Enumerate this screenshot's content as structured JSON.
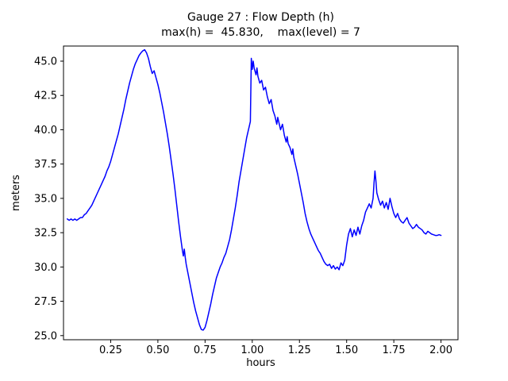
{
  "figure": {
    "title": "Gauge 27 : Flow Depth (h)",
    "subtitle": "max(h) =  45.830,    max(level) = 7"
  },
  "chart_data": {
    "type": "line",
    "title": "Gauge 27 : Flow Depth (h)",
    "subtitle": "max(h) =  45.830,    max(level) = 7",
    "xlabel": "hours",
    "ylabel": "meters",
    "max_h": 45.83,
    "max_level": 7,
    "xlim": [
      0.0,
      2.09
    ],
    "ylim": [
      24.7,
      46.1
    ],
    "x_ticks": [
      0.25,
      0.5,
      0.75,
      1.0,
      1.25,
      1.5,
      1.75,
      2.0
    ],
    "x_tick_labels": [
      "0.25",
      "0.50",
      "0.75",
      "1.00",
      "1.25",
      "1.50",
      "1.75",
      "2.00"
    ],
    "y_ticks": [
      25.0,
      27.5,
      30.0,
      32.5,
      35.0,
      37.5,
      40.0,
      42.5,
      45.0
    ],
    "y_tick_labels": [
      "25.0",
      "27.5",
      "30.0",
      "32.5",
      "35.0",
      "37.5",
      "40.0",
      "42.5",
      "45.0"
    ],
    "line_color": "#0000ff",
    "axis_color": "#000000",
    "background_color": "#ffffff",
    "grid": false,
    "legend": false,
    "series": [
      {
        "name": "h",
        "points": [
          [
            0.02,
            33.5
          ],
          [
            0.03,
            33.4
          ],
          [
            0.04,
            33.5
          ],
          [
            0.05,
            33.4
          ],
          [
            0.06,
            33.5
          ],
          [
            0.07,
            33.4
          ],
          [
            0.08,
            33.5
          ],
          [
            0.09,
            33.6
          ],
          [
            0.1,
            33.6
          ],
          [
            0.11,
            33.8
          ],
          [
            0.12,
            33.9
          ],
          [
            0.13,
            34.1
          ],
          [
            0.14,
            34.3
          ],
          [
            0.15,
            34.5
          ],
          [
            0.16,
            34.8
          ],
          [
            0.17,
            35.1
          ],
          [
            0.18,
            35.4
          ],
          [
            0.19,
            35.7
          ],
          [
            0.2,
            36.0
          ],
          [
            0.21,
            36.3
          ],
          [
            0.22,
            36.6
          ],
          [
            0.23,
            37.0
          ],
          [
            0.24,
            37.3
          ],
          [
            0.25,
            37.7
          ],
          [
            0.26,
            38.2
          ],
          [
            0.27,
            38.7
          ],
          [
            0.28,
            39.2
          ],
          [
            0.29,
            39.7
          ],
          [
            0.3,
            40.3
          ],
          [
            0.31,
            40.9
          ],
          [
            0.32,
            41.5
          ],
          [
            0.33,
            42.2
          ],
          [
            0.34,
            42.8
          ],
          [
            0.35,
            43.4
          ],
          [
            0.36,
            43.9
          ],
          [
            0.37,
            44.4
          ],
          [
            0.38,
            44.8
          ],
          [
            0.39,
            45.1
          ],
          [
            0.4,
            45.4
          ],
          [
            0.41,
            45.6
          ],
          [
            0.42,
            45.75
          ],
          [
            0.43,
            45.83
          ],
          [
            0.44,
            45.6
          ],
          [
            0.45,
            45.2
          ],
          [
            0.46,
            44.6
          ],
          [
            0.47,
            44.1
          ],
          [
            0.48,
            44.3
          ],
          [
            0.49,
            43.8
          ],
          [
            0.5,
            43.3
          ],
          [
            0.51,
            42.7
          ],
          [
            0.52,
            42.0
          ],
          [
            0.53,
            41.3
          ],
          [
            0.54,
            40.5
          ],
          [
            0.55,
            39.7
          ],
          [
            0.56,
            38.8
          ],
          [
            0.57,
            37.8
          ],
          [
            0.58,
            36.8
          ],
          [
            0.59,
            35.7
          ],
          [
            0.6,
            34.5
          ],
          [
            0.61,
            33.3
          ],
          [
            0.62,
            32.2
          ],
          [
            0.63,
            31.2
          ],
          [
            0.635,
            30.8
          ],
          [
            0.64,
            31.3
          ],
          [
            0.645,
            30.7
          ],
          [
            0.65,
            30.2
          ],
          [
            0.66,
            29.5
          ],
          [
            0.67,
            28.8
          ],
          [
            0.68,
            28.1
          ],
          [
            0.69,
            27.4
          ],
          [
            0.7,
            26.8
          ],
          [
            0.71,
            26.3
          ],
          [
            0.72,
            25.8
          ],
          [
            0.73,
            25.45
          ],
          [
            0.74,
            25.4
          ],
          [
            0.75,
            25.6
          ],
          [
            0.76,
            26.1
          ],
          [
            0.77,
            26.7
          ],
          [
            0.78,
            27.3
          ],
          [
            0.79,
            28.0
          ],
          [
            0.8,
            28.6
          ],
          [
            0.81,
            29.2
          ],
          [
            0.82,
            29.6
          ],
          [
            0.83,
            30.0
          ],
          [
            0.84,
            30.3
          ],
          [
            0.85,
            30.7
          ],
          [
            0.86,
            31.0
          ],
          [
            0.87,
            31.5
          ],
          [
            0.88,
            32.0
          ],
          [
            0.89,
            32.7
          ],
          [
            0.9,
            33.5
          ],
          [
            0.91,
            34.3
          ],
          [
            0.92,
            35.2
          ],
          [
            0.93,
            36.2
          ],
          [
            0.94,
            37.0
          ],
          [
            0.95,
            37.8
          ],
          [
            0.96,
            38.6
          ],
          [
            0.97,
            39.4
          ],
          [
            0.98,
            40.0
          ],
          [
            0.985,
            40.3
          ],
          [
            0.99,
            40.6
          ],
          [
            0.995,
            45.2
          ],
          [
            1.0,
            44.4
          ],
          [
            1.005,
            45.0
          ],
          [
            1.01,
            44.5
          ],
          [
            1.02,
            44.0
          ],
          [
            1.025,
            44.5
          ],
          [
            1.03,
            43.9
          ],
          [
            1.04,
            43.4
          ],
          [
            1.05,
            43.6
          ],
          [
            1.06,
            42.9
          ],
          [
            1.07,
            43.1
          ],
          [
            1.08,
            42.4
          ],
          [
            1.09,
            41.9
          ],
          [
            1.1,
            42.2
          ],
          [
            1.11,
            41.4
          ],
          [
            1.12,
            41.0
          ],
          [
            1.13,
            40.4
          ],
          [
            1.135,
            40.9
          ],
          [
            1.14,
            40.6
          ],
          [
            1.15,
            40.0
          ],
          [
            1.16,
            40.4
          ],
          [
            1.17,
            39.6
          ],
          [
            1.18,
            39.1
          ],
          [
            1.185,
            39.5
          ],
          [
            1.19,
            39.0
          ],
          [
            1.2,
            38.7
          ],
          [
            1.21,
            38.2
          ],
          [
            1.215,
            38.6
          ],
          [
            1.22,
            38.0
          ],
          [
            1.23,
            37.4
          ],
          [
            1.24,
            36.8
          ],
          [
            1.25,
            36.1
          ],
          [
            1.26,
            35.4
          ],
          [
            1.27,
            34.7
          ],
          [
            1.28,
            33.9
          ],
          [
            1.29,
            33.3
          ],
          [
            1.3,
            32.8
          ],
          [
            1.31,
            32.4
          ],
          [
            1.32,
            32.1
          ],
          [
            1.33,
            31.8
          ],
          [
            1.34,
            31.5
          ],
          [
            1.35,
            31.2
          ],
          [
            1.36,
            31.0
          ],
          [
            1.37,
            30.7
          ],
          [
            1.38,
            30.4
          ],
          [
            1.39,
            30.2
          ],
          [
            1.4,
            30.1
          ],
          [
            1.41,
            30.2
          ],
          [
            1.42,
            29.9
          ],
          [
            1.43,
            30.1
          ],
          [
            1.44,
            29.85
          ],
          [
            1.45,
            30.0
          ],
          [
            1.46,
            29.8
          ],
          [
            1.47,
            30.3
          ],
          [
            1.48,
            30.1
          ],
          [
            1.49,
            30.5
          ],
          [
            1.5,
            31.6
          ],
          [
            1.505,
            32.0
          ],
          [
            1.51,
            32.4
          ],
          [
            1.52,
            32.8
          ],
          [
            1.53,
            32.2
          ],
          [
            1.54,
            32.7
          ],
          [
            1.55,
            32.3
          ],
          [
            1.56,
            32.9
          ],
          [
            1.57,
            32.4
          ],
          [
            1.58,
            33.0
          ],
          [
            1.59,
            33.4
          ],
          [
            1.6,
            34.0
          ],
          [
            1.61,
            34.3
          ],
          [
            1.62,
            34.6
          ],
          [
            1.63,
            34.3
          ],
          [
            1.64,
            35.0
          ],
          [
            1.645,
            36.1
          ],
          [
            1.65,
            37.0
          ],
          [
            1.655,
            36.3
          ],
          [
            1.66,
            35.4
          ],
          [
            1.67,
            34.9
          ],
          [
            1.68,
            34.5
          ],
          [
            1.69,
            34.8
          ],
          [
            1.7,
            34.3
          ],
          [
            1.71,
            34.7
          ],
          [
            1.72,
            34.2
          ],
          [
            1.73,
            35.0
          ],
          [
            1.74,
            34.4
          ],
          [
            1.75,
            33.9
          ],
          [
            1.76,
            33.6
          ],
          [
            1.77,
            33.9
          ],
          [
            1.78,
            33.5
          ],
          [
            1.79,
            33.3
          ],
          [
            1.8,
            33.2
          ],
          [
            1.81,
            33.4
          ],
          [
            1.82,
            33.6
          ],
          [
            1.83,
            33.2
          ],
          [
            1.84,
            33.0
          ],
          [
            1.85,
            32.8
          ],
          [
            1.86,
            32.9
          ],
          [
            1.87,
            33.1
          ],
          [
            1.88,
            32.9
          ],
          [
            1.89,
            32.8
          ],
          [
            1.9,
            32.7
          ],
          [
            1.91,
            32.5
          ],
          [
            1.92,
            32.4
          ],
          [
            1.93,
            32.6
          ],
          [
            1.94,
            32.5
          ],
          [
            1.95,
            32.4
          ],
          [
            1.96,
            32.35
          ],
          [
            1.97,
            32.3
          ],
          [
            1.98,
            32.3
          ],
          [
            1.99,
            32.35
          ],
          [
            2.0,
            32.3
          ]
        ]
      }
    ]
  }
}
